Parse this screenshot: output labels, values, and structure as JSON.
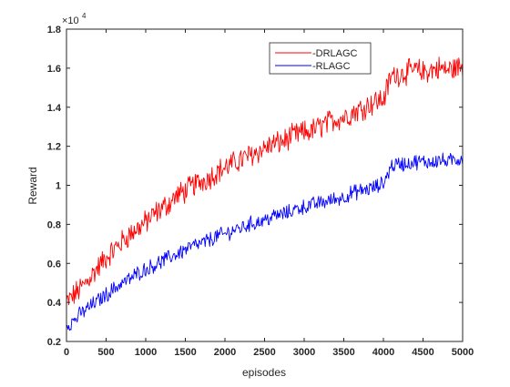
{
  "chart_data": {
    "type": "line",
    "title": "",
    "xlabel": "episodes",
    "ylabel": "Reward",
    "xlim": [
      0,
      5000
    ],
    "ylim": [
      0.2,
      1.8
    ],
    "x_ticks": [
      "0",
      "500",
      "1000",
      "1500",
      "2000",
      "2500",
      "3000",
      "3500",
      "4000",
      "4500",
      "5000"
    ],
    "y_ticks": [
      "0.2",
      "0.4",
      "0.6",
      "0.8",
      "1",
      "1.2",
      "1.4",
      "1.6",
      "1.8"
    ],
    "y_exponent_label": "×10",
    "y_exponent_power": "4",
    "grid": false,
    "legend_position": "top-right",
    "series": [
      {
        "name": "-DRLAGC",
        "color": "#ff0000",
        "x": [
          0,
          100,
          200,
          300,
          400,
          500,
          600,
          700,
          800,
          900,
          1000,
          1100,
          1200,
          1300,
          1400,
          1500,
          1600,
          1700,
          1800,
          1900,
          2000,
          2100,
          2200,
          2300,
          2400,
          2500,
          2600,
          2700,
          2800,
          2900,
          3000,
          3100,
          3200,
          3300,
          3400,
          3500,
          3600,
          3700,
          3800,
          3900,
          4000,
          4100,
          4200,
          4300,
          4400,
          4500,
          4600,
          4700,
          4800,
          4900,
          5000
        ],
        "values": [
          0.4,
          0.44,
          0.48,
          0.53,
          0.58,
          0.63,
          0.67,
          0.71,
          0.75,
          0.78,
          0.81,
          0.85,
          0.88,
          0.91,
          0.95,
          0.97,
          1.0,
          1.02,
          1.04,
          1.07,
          1.09,
          1.11,
          1.13,
          1.15,
          1.17,
          1.19,
          1.21,
          1.22,
          1.24,
          1.26,
          1.27,
          1.28,
          1.3,
          1.32,
          1.34,
          1.35,
          1.37,
          1.39,
          1.41,
          1.43,
          1.44,
          1.56,
          1.57,
          1.58,
          1.59,
          1.58,
          1.59,
          1.6,
          1.59,
          1.6,
          1.61
        ]
      },
      {
        "name": "-RLAGC",
        "color": "#0000ff",
        "x": [
          0,
          100,
          200,
          300,
          400,
          500,
          600,
          700,
          800,
          900,
          1000,
          1100,
          1200,
          1300,
          1400,
          1500,
          1600,
          1700,
          1800,
          1900,
          2000,
          2100,
          2200,
          2300,
          2400,
          2500,
          2600,
          2700,
          2800,
          2900,
          3000,
          3100,
          3200,
          3300,
          3400,
          3500,
          3600,
          3700,
          3800,
          3900,
          4000,
          4100,
          4200,
          4300,
          4400,
          4500,
          4600,
          4700,
          4800,
          4900,
          5000
        ],
        "values": [
          0.28,
          0.31,
          0.35,
          0.38,
          0.41,
          0.44,
          0.47,
          0.5,
          0.52,
          0.55,
          0.57,
          0.59,
          0.61,
          0.63,
          0.65,
          0.67,
          0.69,
          0.7,
          0.72,
          0.74,
          0.75,
          0.77,
          0.78,
          0.8,
          0.81,
          0.82,
          0.84,
          0.85,
          0.86,
          0.88,
          0.89,
          0.9,
          0.91,
          0.92,
          0.93,
          0.94,
          0.96,
          0.97,
          0.98,
          0.99,
          1.01,
          1.1,
          1.11,
          1.11,
          1.12,
          1.12,
          1.12,
          1.13,
          1.12,
          1.13,
          1.14
        ]
      }
    ]
  }
}
